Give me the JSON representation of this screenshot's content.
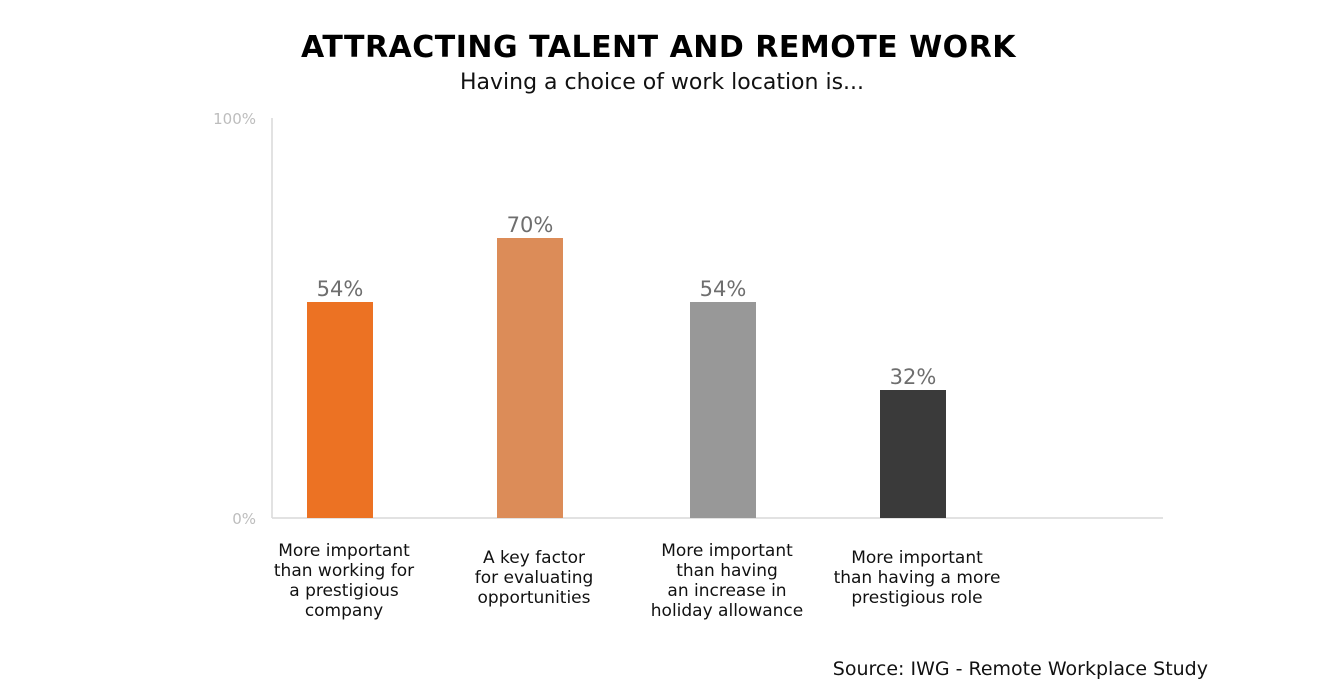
{
  "chart_data": {
    "type": "bar",
    "title": "ATTRACTING TALENT AND REMOTE WORK",
    "subtitle": "Having a choice of work location is...",
    "categories": [
      [
        "More important",
        "than working for",
        "a prestigious",
        "company"
      ],
      [
        "A key factor",
        "for evaluating",
        "opportunities"
      ],
      [
        "More important",
        "than having",
        "an increase in",
        "holiday allowance"
      ],
      [
        "More important",
        "than having a more",
        "prestigious role"
      ]
    ],
    "values": [
      54,
      70,
      54,
      32
    ],
    "data_labels": [
      "54%",
      "70%",
      "54%",
      "32%"
    ],
    "colors": [
      "#ec7223",
      "#dc8c58",
      "#989898",
      "#3a3a3a"
    ],
    "ylim": [
      0,
      100
    ],
    "y_ticks": [
      "0%",
      "100%"
    ],
    "xlabel": "",
    "ylabel": "",
    "grid": false,
    "legend": "none",
    "data_label_color": "#6e6e6e",
    "axis_color": "#d9d9d9",
    "tick_label_color": "#bdbdbd"
  },
  "footer": {
    "source": "Source: IWG - Remote Workplace Study"
  }
}
